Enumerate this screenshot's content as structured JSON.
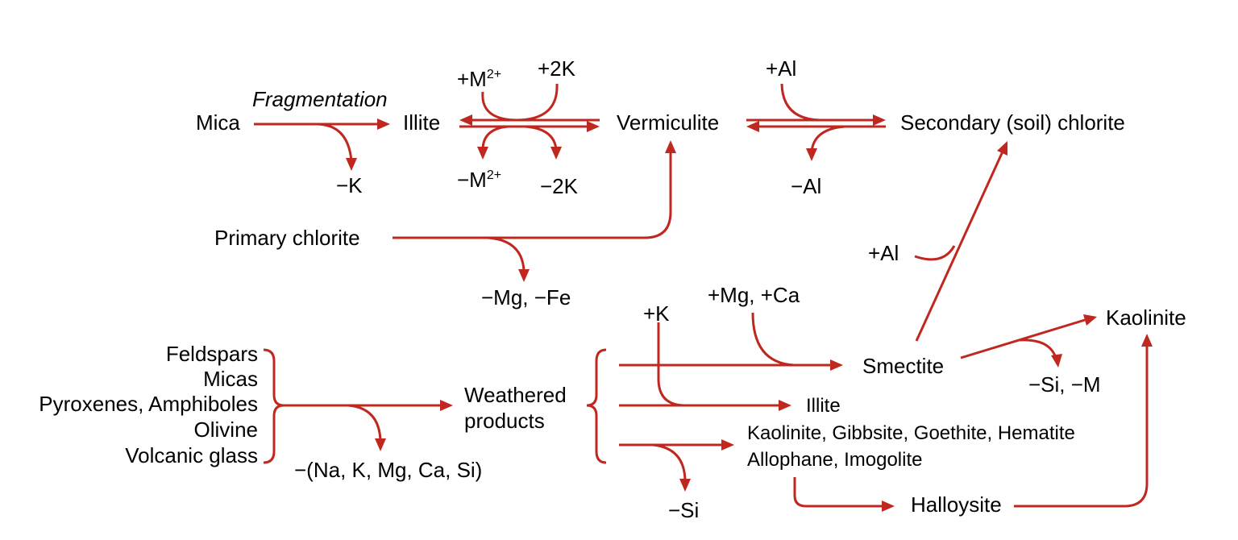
{
  "colors": {
    "arrow": "#c0281f",
    "text": "#000000"
  },
  "minerals": {
    "mica": "Mica",
    "fragmentation": "Fragmentation",
    "illite": "Illite",
    "vermiculite": "Vermiculite",
    "secondary_chlorite": "Secondary (soil) chlorite",
    "primary_chlorite": "Primary chlorite",
    "smectite": "Smectite",
    "kaolinite": "Kaolinite",
    "weathered_products": "Weathered\nproducts",
    "illite_2": "Illite",
    "kaolinite_group": "Kaolinite, Gibbsite, Goethite, Hematite",
    "allophane": "Allophane, Imogolite",
    "halloysite": "Halloysite"
  },
  "primary_minerals": [
    "Feldspars",
    "Micas",
    "Pyroxenes, Amphiboles",
    "Olivine",
    "Volcanic glass"
  ],
  "reactions": {
    "minus_k": "−K",
    "plus_m_base": "+M",
    "m_charge": "2+",
    "minus_m_base": "−M",
    "plus_2k": "+2K",
    "minus_2k": "−2K",
    "plus_al_top": "+Al",
    "minus_al": "−Al",
    "minus_mg_fe": "−Mg, −Fe",
    "plus_al_mid": "+Al",
    "plus_k": "+K",
    "plus_mg_ca": "+Mg, +Ca",
    "minus_si_m": "−Si, −M",
    "minus_leach": "−(Na, K, Mg, Ca, Si)",
    "minus_si": "−Si"
  }
}
